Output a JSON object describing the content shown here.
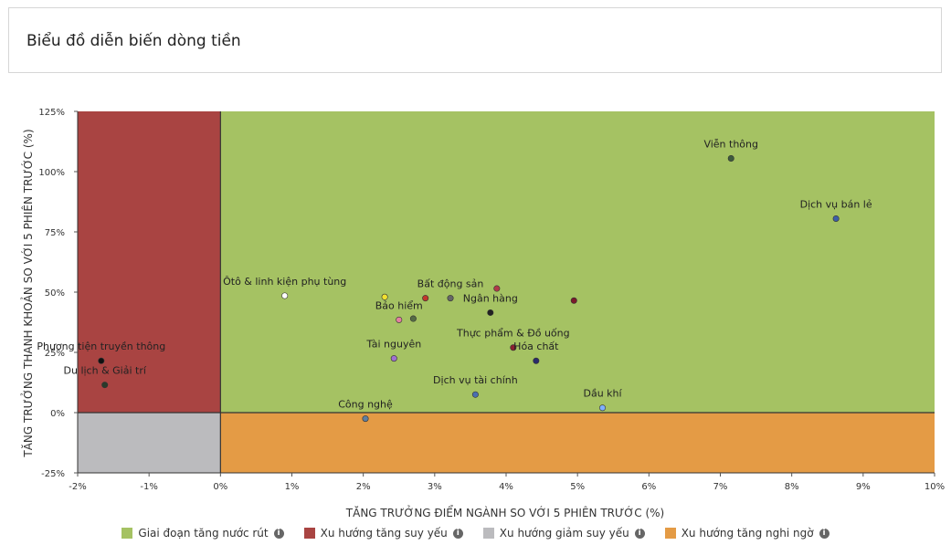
{
  "page": {
    "title": "Biểu đồ diễn biến dòng tiền"
  },
  "colors": {
    "green": "#a5c263",
    "red": "#a94442",
    "gray": "#bbbbbe",
    "orange": "#e49b45"
  },
  "legend": [
    {
      "label": "Giai đoạn tăng nước rút",
      "color": "#a5c263",
      "icon": "info-icon"
    },
    {
      "label": "Xu hướng tăng suy yếu",
      "color": "#a94442",
      "icon": "info-icon"
    },
    {
      "label": "Xu hướng giảm suy yếu",
      "color": "#bbbbbe",
      "icon": "info-icon"
    },
    {
      "label": "Xu hướng tăng nghi ngờ",
      "color": "#e49b45",
      "icon": "info-icon"
    }
  ],
  "chart_data": {
    "type": "scatter",
    "xlabel": "TĂNG TRƯỞNG ĐIỂM NGÀNH SO VỚI 5 PHIÊN TRƯỚC (%)",
    "ylabel": "TĂNG TRƯỞNG THANH KHOẢN SO VỚI 5 PHIÊN TRƯỚC (%)",
    "xlim": [
      -2,
      10
    ],
    "ylim": [
      -25,
      125
    ],
    "xticks": [
      -2,
      -1,
      0,
      1,
      2,
      3,
      4,
      5,
      6,
      7,
      8,
      9,
      10
    ],
    "yticks": [
      -25,
      0,
      25,
      50,
      75,
      100,
      125
    ],
    "xtick_labels": [
      "-2%",
      "-1%",
      "0%",
      "1%",
      "2%",
      "3%",
      "4%",
      "5%",
      "6%",
      "7%",
      "8%",
      "9%",
      "10%"
    ],
    "ytick_labels": [
      "-25%",
      "0%",
      "25%",
      "50%",
      "75%",
      "100%",
      "125%"
    ],
    "points": [
      {
        "label": "Viễn thông",
        "x": 7.15,
        "y": 105.5,
        "color": "#3d5a3d"
      },
      {
        "label": "Dịch vụ bán lẻ",
        "x": 8.62,
        "y": 80.5,
        "color": "#3d5fa8"
      },
      {
        "label": "Ôtô & linh kiện phụ tùng",
        "x": 0.9,
        "y": 48.5,
        "color": "#ffffff"
      },
      {
        "label": "",
        "x": 2.3,
        "y": 48.0,
        "color": "#f0e030"
      },
      {
        "label": "",
        "x": 2.87,
        "y": 47.5,
        "color": "#c0392b"
      },
      {
        "label": "Bất động sản",
        "x": 3.22,
        "y": 47.5,
        "color": "#666666"
      },
      {
        "label": "",
        "x": 3.87,
        "y": 51.5,
        "color": "#b03a48"
      },
      {
        "label": "",
        "x": 4.95,
        "y": 46.5,
        "color": "#7a1a2a"
      },
      {
        "label": "Ngân hàng",
        "x": 3.78,
        "y": 41.5,
        "color": "#222222"
      },
      {
        "label": "Bảo hiểm",
        "x": 2.5,
        "y": 38.5,
        "color": "#e27fa0"
      },
      {
        "label": "",
        "x": 2.7,
        "y": 39.0,
        "color": "#556b45"
      },
      {
        "label": "Thực phẩm & Đồ uống",
        "x": 4.1,
        "y": 27.0,
        "color": "#8b2030"
      },
      {
        "label": "Hóa chất",
        "x": 4.42,
        "y": 21.5,
        "color": "#2a2a6a"
      },
      {
        "label": "Tài nguyên",
        "x": 2.43,
        "y": 22.5,
        "color": "#a070d0"
      },
      {
        "label": "Dịch vụ tài chính",
        "x": 3.57,
        "y": 7.5,
        "color": "#4a6fb0"
      },
      {
        "label": "Dầu khí",
        "x": 5.35,
        "y": 2.0,
        "color": "#7fb0ff"
      },
      {
        "label": "Công nghệ",
        "x": 2.03,
        "y": -2.5,
        "color": "#5f7fa0"
      },
      {
        "label": "Phương tiện truyền thông",
        "x": -1.67,
        "y": 21.5,
        "color": "#111111"
      },
      {
        "label": "Du lịch & Giải trí",
        "x": -1.62,
        "y": 11.5,
        "color": "#2a3a2a"
      }
    ]
  }
}
